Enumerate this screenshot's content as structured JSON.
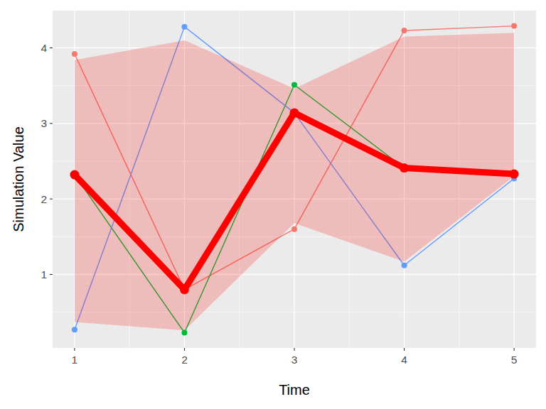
{
  "chart_data": {
    "type": "line",
    "x_label": "Time",
    "y_label": "Simulation Value",
    "x": [
      1,
      2,
      3,
      4,
      5
    ],
    "xlim": [
      0.8,
      5.2
    ],
    "xticks": [
      1,
      2,
      3,
      4,
      5
    ],
    "ylim": [
      0.027,
      4.493
    ],
    "yticks": [
      1,
      2,
      3,
      4
    ],
    "grid": true,
    "ribbon": {
      "color": "#FF0000",
      "lower": [
        0.37,
        0.26,
        1.68,
        1.17,
        2.3
      ],
      "upper": [
        3.84,
        4.1,
        3.46,
        4.15,
        4.2
      ]
    },
    "series": [
      {
        "color": "#F8766D",
        "marker": "circle",
        "values": [
          3.92,
          0.8,
          1.6,
          4.23,
          4.29
        ]
      },
      {
        "color": "#00BA38",
        "marker": "circle",
        "values": [
          2.32,
          0.23,
          3.51,
          2.41,
          2.33
        ]
      },
      {
        "color": "#619CFF",
        "marker": "circle",
        "values": [
          0.27,
          4.28,
          3.14,
          1.12,
          2.27
        ]
      },
      {
        "color": "#FF0000",
        "marker": "circle",
        "line_style": "bold",
        "values": [
          2.32,
          0.8,
          3.14,
          2.41,
          2.33
        ]
      }
    ]
  }
}
